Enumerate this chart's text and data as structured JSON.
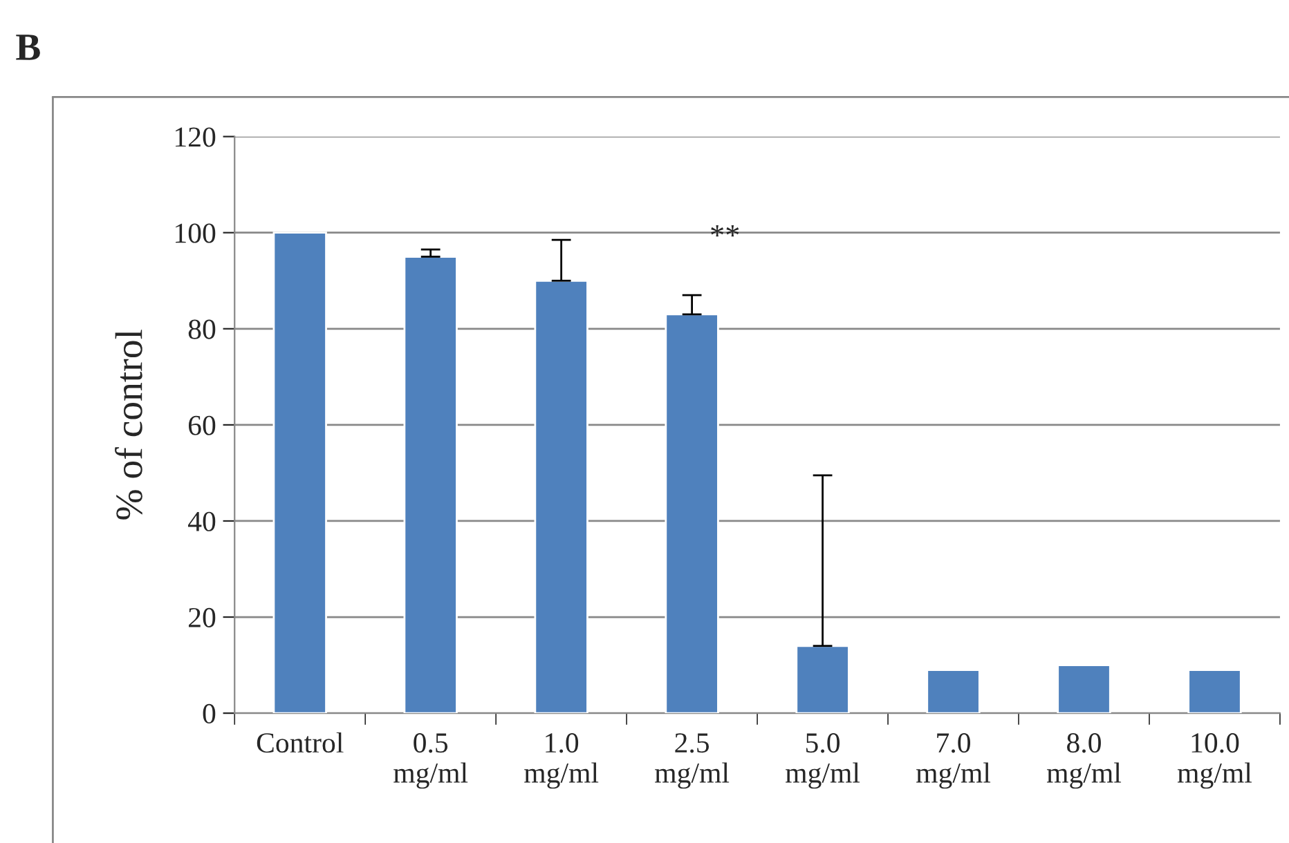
{
  "chart_data": {
    "type": "bar",
    "title": "B",
    "ylabel": "% of control",
    "categories": [
      "Control",
      "0.5\nmg/ml",
      "1.0\nmg/ml",
      "2.5\nmg/ml",
      "5.0\nmg/ml",
      "7.0\nmg/ml",
      "8.0\nmg/ml",
      "10.0\nmg/ml"
    ],
    "values": [
      100,
      95,
      90,
      83,
      14,
      9,
      10,
      9
    ],
    "errors": [
      null,
      [
        95,
        96.5
      ],
      [
        90,
        98.5
      ],
      [
        83,
        87
      ],
      [
        14,
        49.5
      ],
      null,
      null,
      null
    ],
    "color": "#4f81bd",
    "ylim": [
      0,
      120
    ],
    "yticks": [
      0,
      20,
      40,
      60,
      80,
      100,
      120
    ],
    "grid": "y",
    "annotations": [
      "**"
    ]
  }
}
